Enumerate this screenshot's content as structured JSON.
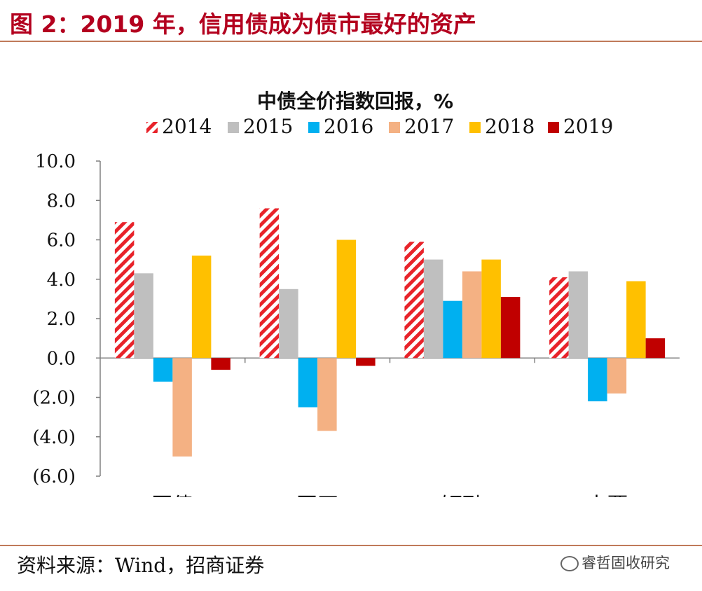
{
  "figure": {
    "title": "图 2：2019 年，信用债成为债市最好的资产",
    "source": "资料来源：Wind，招商证券",
    "watermark": "睿哲固收研究"
  },
  "chart_data": {
    "type": "bar",
    "title": "中债全价指数回报，%",
    "xlabel": "",
    "ylabel": "",
    "categories": [
      "国债",
      "国开",
      "短融",
      "中票"
    ],
    "series": [
      {
        "name": "2014",
        "color": "#e8232a",
        "pattern": "hatch",
        "values": [
          6.9,
          7.6,
          5.9,
          4.1
        ]
      },
      {
        "name": "2015",
        "color": "#bfbfbf",
        "values": [
          4.3,
          3.5,
          5.0,
          4.4
        ]
      },
      {
        "name": "2016",
        "color": "#00b0f0",
        "values": [
          -1.2,
          -2.5,
          2.9,
          -2.2
        ]
      },
      {
        "name": "2017",
        "color": "#f4b183",
        "values": [
          -5.0,
          -3.7,
          4.4,
          -1.8
        ]
      },
      {
        "name": "2018",
        "color": "#ffc000",
        "values": [
          5.2,
          6.0,
          5.0,
          3.9
        ]
      },
      {
        "name": "2019",
        "color": "#c00000",
        "values": [
          -0.6,
          -0.4,
          3.1,
          1.0
        ]
      }
    ],
    "ylim": [
      -6,
      10
    ],
    "yticks": [
      10,
      8,
      6,
      4,
      2,
      0,
      -2,
      -4,
      -6
    ],
    "ytick_labels": [
      "10.0",
      "8.0",
      "6.0",
      "4.0",
      "2.0",
      "0.0",
      "(2.0)",
      "(4.0)",
      "(6.0)"
    ],
    "legend_position": "top",
    "grid": false
  }
}
